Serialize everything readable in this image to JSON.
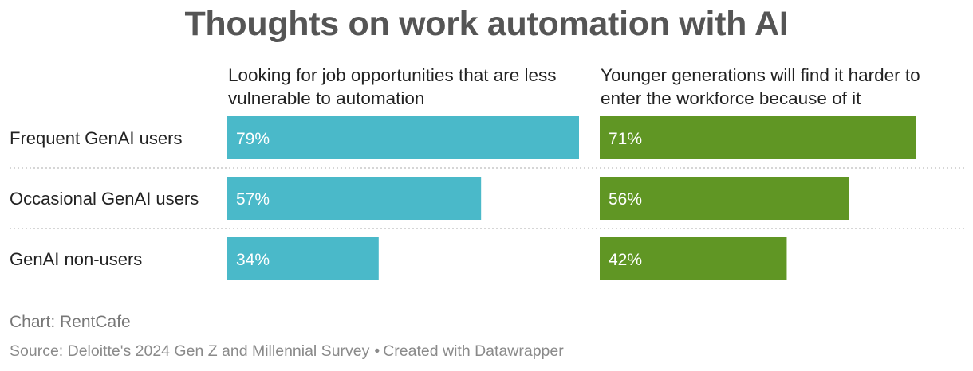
{
  "title": "Thoughts on work automation with AI",
  "columns": [
    {
      "header_line1": "Looking for job opportunities that are less",
      "header_line2": "vulnerable to automation"
    },
    {
      "header_line1": "Younger generations will find it harder to",
      "header_line2": "enter the workforce because of it"
    }
  ],
  "footer": {
    "credit": "Chart: RentCafe",
    "source": "Source: Deloitte's 2024 Gen Z and Millennial Survey",
    "separator": "•",
    "created_with": "Created with Datawrapper"
  },
  "chart_data": {
    "type": "bar",
    "orientation": "horizontal",
    "title": "Thoughts on work automation with AI",
    "categories": [
      "Frequent GenAI users",
      "Occasional GenAI users",
      "GenAI non-users"
    ],
    "series": [
      {
        "name": "Looking for job opportunities that are less vulnerable to automation",
        "values": [
          79,
          57,
          34
        ],
        "labels": [
          "79%",
          "57%",
          "34%"
        ],
        "color": "#4ab9c9"
      },
      {
        "name": "Younger generations will find it harder to enter the workforce because of it",
        "values": [
          71,
          56,
          42
        ],
        "labels": [
          "71%",
          "56%",
          "42%"
        ],
        "color": "#609624"
      }
    ],
    "unit": "%",
    "xlim": [
      0,
      79
    ],
    "grid": false,
    "legend": "none",
    "row_separator": "dotted"
  }
}
